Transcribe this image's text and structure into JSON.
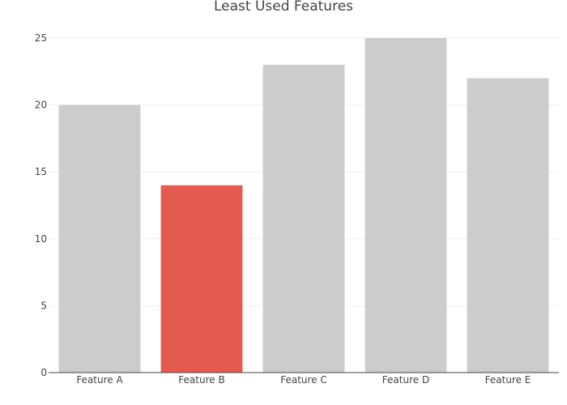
{
  "chart_data": {
    "type": "bar",
    "title": "Least Used Features",
    "xlabel": "",
    "ylabel": "",
    "categories": [
      "Feature A",
      "Feature B",
      "Feature C",
      "Feature D",
      "Feature E"
    ],
    "values": [
      20,
      14,
      23,
      25,
      22
    ],
    "ylim": [
      0,
      25
    ],
    "yticks": [
      0,
      5,
      10,
      15,
      20,
      25
    ],
    "grid": true,
    "legend": "none",
    "bar_colors": [
      "#cccccc",
      "#e45a51",
      "#cccccc",
      "#cccccc",
      "#cccccc"
    ],
    "highlight_color": "#e45a51",
    "base_color": "#cccccc"
  }
}
